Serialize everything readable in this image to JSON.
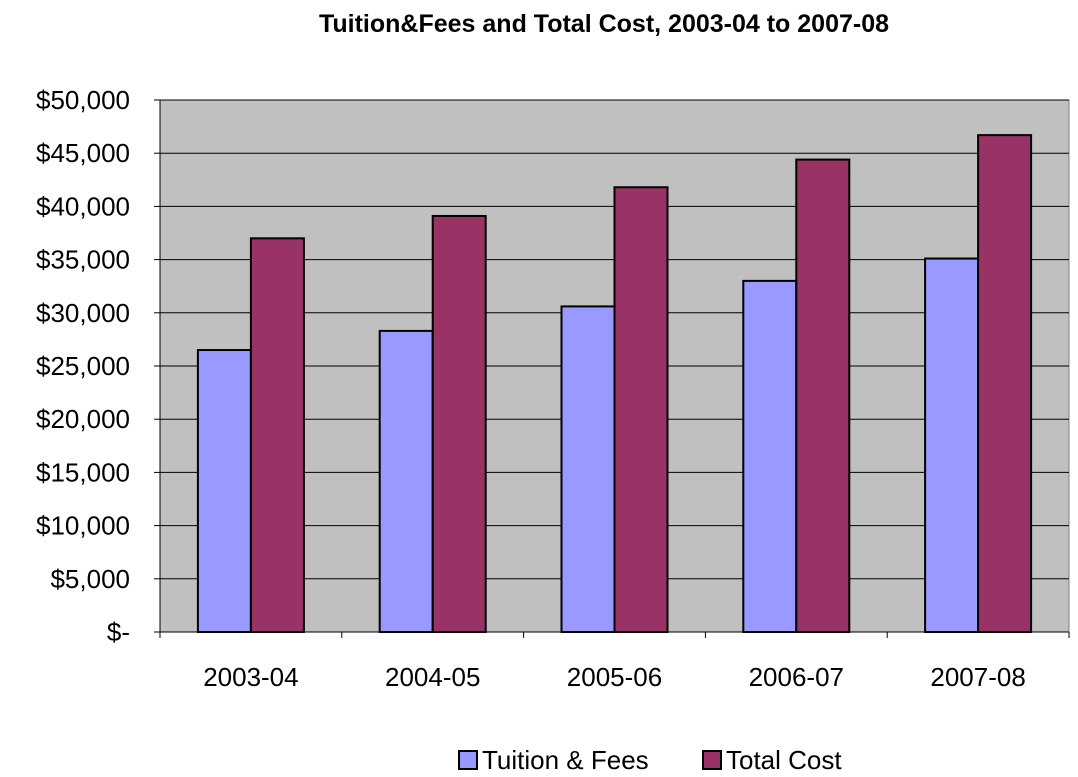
{
  "chart_data": {
    "type": "bar",
    "title": "Tuition&Fees and Total Cost, 2003-04 to 2007-08",
    "xlabel": "",
    "ylabel": "",
    "categories": [
      "2003-04",
      "2004-05",
      "2005-06",
      "2006-07",
      "2007-08"
    ],
    "series": [
      {
        "name": "Tuition & Fees",
        "color": "#9999ff",
        "values": [
          26500,
          28300,
          30600,
          33000,
          35100
        ]
      },
      {
        "name": "Total Cost",
        "color": "#993366",
        "values": [
          37000,
          39100,
          41800,
          44400,
          46700
        ]
      }
    ],
    "ylim": [
      0,
      50000
    ],
    "yticks": [
      0,
      5000,
      10000,
      15000,
      20000,
      25000,
      30000,
      35000,
      40000,
      45000,
      50000
    ],
    "ytick_labels": [
      "$-",
      "$5,000",
      "$10,000",
      "$15,000",
      "$20,000",
      "$25,000",
      "$30,000",
      "$35,000",
      "$40,000",
      "$45,000",
      "$50,000"
    ],
    "grid": true,
    "plot_background": "#c0c0c0",
    "legend_position": "bottom"
  }
}
